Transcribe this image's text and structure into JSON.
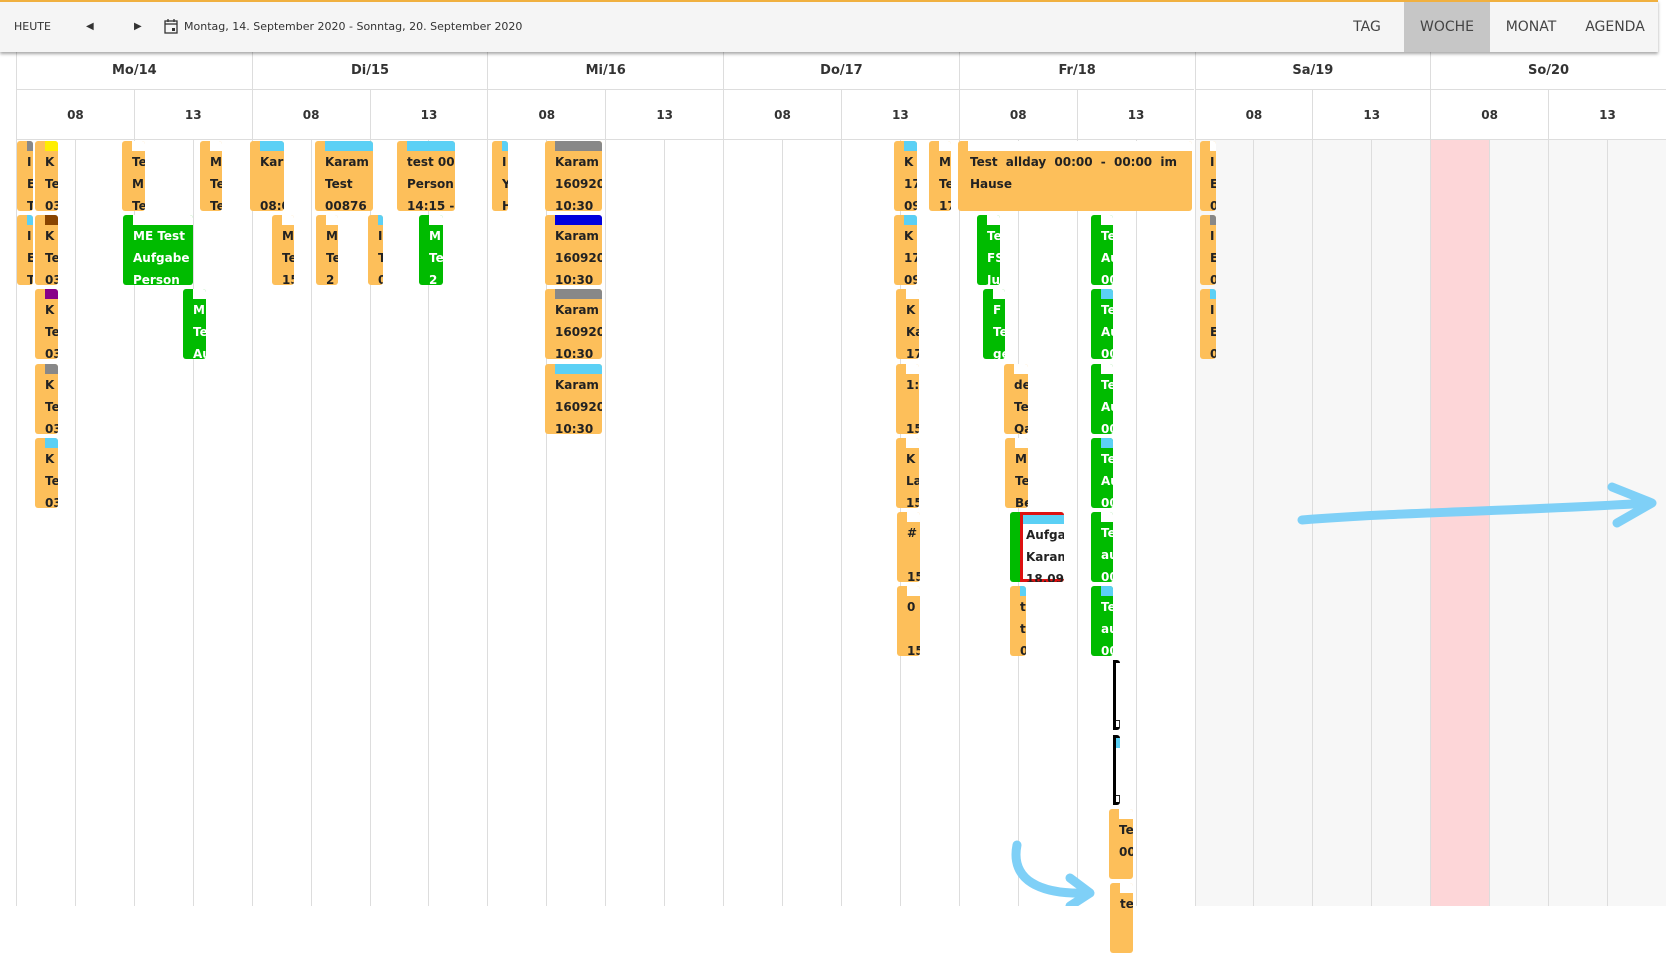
{
  "toolbar": {
    "today_label": "HEUTE",
    "prev_icon": "triangle-left-icon",
    "next_icon": "triangle-right-icon",
    "calendar_icon": "calendar-icon",
    "date_range": "Montag, 14. September 2020 - Sonntag, 20. September 2020",
    "views": [
      {
        "label": "TAG",
        "active": false
      },
      {
        "label": "WOCHE",
        "active": true
      },
      {
        "label": "MONAT",
        "active": false
      },
      {
        "label": "AGENDA",
        "active": false
      }
    ]
  },
  "days": [
    {
      "label": "Mo/14",
      "hours": [
        "08",
        "13"
      ]
    },
    {
      "label": "Di/15",
      "hours": [
        "08",
        "13"
      ]
    },
    {
      "label": "Mi/16",
      "hours": [
        "08",
        "13"
      ]
    },
    {
      "label": "Do/17",
      "hours": [
        "08",
        "13"
      ]
    },
    {
      "label": "Fr/18",
      "hours": [
        "08",
        "13"
      ]
    },
    {
      "label": "Sa/19",
      "hours": [
        "08",
        "13"
      ]
    },
    {
      "label": "So/20",
      "hours": [
        "08",
        "13"
      ]
    }
  ],
  "colors": {
    "orange": "#fdbf5a",
    "green": "#00bb00",
    "lightblue": "#5bd0f5",
    "gray": "#888888",
    "yellow": "#ffee00",
    "brown": "#884400",
    "purple": "#880088",
    "blue": "#0000dd",
    "today_highlight": "#fdd6d8",
    "weekend": "#f7f7f7",
    "annotation": "#7fd0f7"
  },
  "events": [
    {
      "type": "o",
      "stripe": "gray",
      "lines": [
        "I",
        "E",
        "T"
      ]
    },
    {
      "type": "o",
      "stripe": "yellow",
      "lines": [
        "K",
        "Te",
        "03"
      ]
    },
    {
      "type": "o",
      "stripe": "lightblue",
      "lines": [
        "I",
        "E",
        "T"
      ]
    },
    {
      "type": "o",
      "stripe": "brown",
      "lines": [
        "K",
        "Te",
        "03"
      ]
    },
    {
      "type": "o",
      "stripe": "purple",
      "lines": [
        "K",
        "Te",
        "03"
      ]
    },
    {
      "type": "o",
      "stripe": "gray",
      "lines": [
        "K",
        "Te",
        "03"
      ]
    },
    {
      "type": "o",
      "stripe": "lightblue",
      "lines": [
        "K",
        "Te",
        "03"
      ]
    },
    {
      "type": "o",
      "stripe": null,
      "lines": [
        "Te",
        "MI",
        "Te"
      ]
    },
    {
      "type": "o",
      "stripe": null,
      "lines": [
        "M",
        "Te",
        "Te"
      ]
    },
    {
      "type": "o",
      "stripe": "lightblue",
      "lines": [
        "Kar",
        "",
        "08:0"
      ]
    },
    {
      "type": "o",
      "stripe": "lightblue",
      "lines": [
        "Karam",
        "Test",
        "00876"
      ]
    },
    {
      "type": "o",
      "stripe": "lightblue",
      "lines": [
        "test 00",
        "Person",
        "14:15 -"
      ]
    },
    {
      "type": "g",
      "stripe": null,
      "lines": [
        "ME Test",
        "Aufgabe",
        "Person"
      ]
    },
    {
      "type": "o",
      "stripe": null,
      "lines": [
        "M",
        "Te",
        "15"
      ]
    },
    {
      "type": "o",
      "stripe": null,
      "lines": [
        "M",
        "Te",
        "2"
      ]
    },
    {
      "type": "o",
      "stripe": "lightblue",
      "lines": [
        "I",
        "T",
        "0"
      ]
    },
    {
      "type": "g",
      "stripe": null,
      "lines": [
        "M",
        "Te",
        "2"
      ]
    },
    {
      "type": "g",
      "stripe": null,
      "lines": [
        "M",
        "Te",
        "Au"
      ]
    },
    {
      "type": "o",
      "stripe": "lightblue",
      "lines": [
        "I",
        "Y",
        "H"
      ]
    },
    {
      "type": "o",
      "stripe": "gray",
      "lines": [
        "Karam",
        "160920",
        "10:30"
      ]
    },
    {
      "type": "o",
      "stripe": "blue",
      "lines": [
        "Karam",
        "160920",
        "10:30"
      ]
    },
    {
      "type": "o",
      "stripe": "gray",
      "lines": [
        "Karam",
        "160920",
        "10:30"
      ]
    },
    {
      "type": "o",
      "stripe": "lightblue",
      "lines": [
        "Karam",
        "160920",
        "10:30"
      ]
    },
    {
      "type": "o",
      "stripe": "lightblue",
      "lines": [
        "K",
        "17",
        "09"
      ]
    },
    {
      "type": "o",
      "stripe": "lightblue",
      "lines": [
        "K",
        "17",
        "09"
      ]
    },
    {
      "type": "o",
      "stripe": null,
      "lines": [
        "M",
        "Te",
        "17"
      ]
    },
    {
      "type": "o",
      "stripe": null,
      "lines": [
        "K",
        "Ka",
        "17"
      ]
    },
    {
      "type": "o",
      "stripe": null,
      "lines": [
        "1:",
        "",
        "15"
      ]
    },
    {
      "type": "o",
      "stripe": null,
      "lines": [
        "K",
        "La",
        "15"
      ]
    },
    {
      "type": "o",
      "stripe": null,
      "lines": [
        "#",
        "",
        "15"
      ]
    },
    {
      "type": "o",
      "stripe": null,
      "lines": [
        "0",
        "",
        "15"
      ]
    },
    {
      "type": "allday",
      "stripe": null,
      "lines": [
        "Test allday 00:00 - 00:00 im Hause"
      ]
    },
    {
      "type": "g",
      "stripe": null,
      "lines": [
        "Te",
        "FS",
        "Ju"
      ]
    },
    {
      "type": "g",
      "stripe": null,
      "lines": [
        "F",
        "Te",
        "ge"
      ]
    },
    {
      "type": "o",
      "stripe": null,
      "lines": [
        "de",
        "Te",
        "Qa"
      ]
    },
    {
      "type": "o",
      "stripe": null,
      "lines": [
        "M",
        "Te",
        "Be"
      ]
    },
    {
      "type": "special",
      "stripe": "lightblue",
      "lines": [
        "Aufga",
        "Karam",
        "18.09"
      ]
    },
    {
      "type": "o",
      "stripe": "lightblue",
      "lines": [
        "t",
        "te",
        "0"
      ]
    },
    {
      "type": "g",
      "stripe": null,
      "lines": [
        "Te",
        "Au",
        "00"
      ]
    },
    {
      "type": "g",
      "stripe": "lightblue",
      "lines": [
        "Te",
        "Au",
        "00"
      ]
    },
    {
      "type": "g",
      "stripe": null,
      "lines": [
        "Te",
        "Au",
        "00"
      ]
    },
    {
      "type": "g",
      "stripe": "lightblue",
      "lines": [
        "Te",
        "Au",
        "00"
      ]
    },
    {
      "type": "g",
      "stripe": null,
      "lines": [
        "Te",
        "au",
        "00"
      ]
    },
    {
      "type": "g",
      "stripe": "lightblue",
      "lines": [
        "Te",
        "au",
        "00"
      ]
    },
    {
      "type": "bracket",
      "stripe": null,
      "lines": [
        "",
        "",
        "T"
      ]
    },
    {
      "type": "bracket",
      "stripe": "lightblue",
      "lines": [
        "",
        "",
        "T"
      ]
    },
    {
      "type": "o",
      "stripe": null,
      "lines": [
        "Te",
        "00"
      ]
    },
    {
      "type": "o",
      "stripe": null,
      "lines": [
        "te"
      ]
    },
    {
      "type": "o",
      "stripe": null,
      "lines": [
        "I",
        "E",
        "0"
      ]
    },
    {
      "type": "o",
      "stripe": "gray",
      "lines": [
        "I",
        "E",
        "0"
      ]
    },
    {
      "type": "o",
      "stripe": "lightblue",
      "lines": [
        "I",
        "E",
        "0"
      ]
    }
  ]
}
